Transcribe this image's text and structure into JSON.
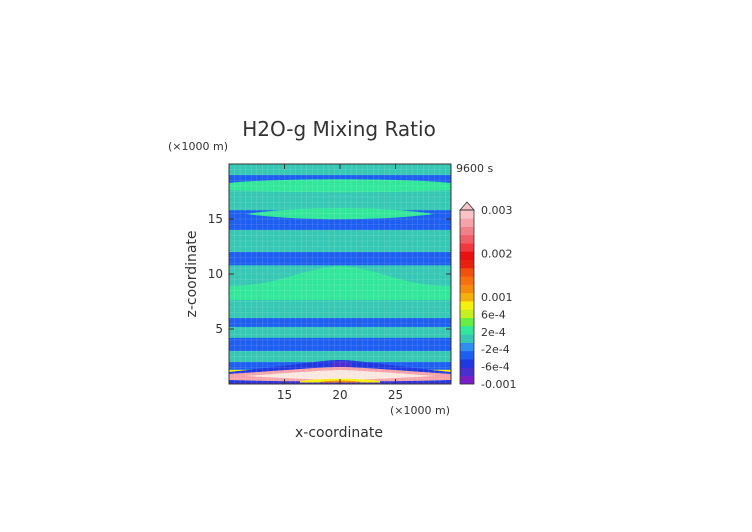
{
  "chart_data": {
    "type": "heatmap",
    "title": "H2O-g Mixing Ratio",
    "time_label": "9600 s",
    "xlabel": "x-coordinate",
    "ylabel": "z-coordinate",
    "x_unit": "(×1000 m)",
    "y_unit": "(×1000 m)",
    "xlim": [
      10,
      30
    ],
    "ylim": [
      0,
      20
    ],
    "x_ticks": [
      15,
      20,
      25
    ],
    "y_ticks": [
      5,
      10,
      15
    ],
    "colorbar": {
      "levels": [
        -0.001,
        -0.0008,
        -0.0006,
        -0.0004,
        -0.0002,
        0,
        0.0002,
        0.0004,
        0.0006,
        0.0008,
        0.001,
        0.0012,
        0.0014,
        0.0016,
        0.0018,
        0.002,
        0.0022,
        0.0024,
        0.0026,
        0.0028,
        0.003
      ],
      "colors": [
        "#7a1fc8",
        "#4a2fd0",
        "#2038e0",
        "#1e5ef0",
        "#2f8ff0",
        "#36c8b4",
        "#32e69a",
        "#66ee44",
        "#c8f020",
        "#f5f010",
        "#f5b010",
        "#f58a10",
        "#f57010",
        "#f05010",
        "#e82010",
        "#e81010",
        "#f03840",
        "#f05f66",
        "#f0808a",
        "#f5a2a8",
        "#f9c4c8"
      ],
      "labels": [
        "0.003",
        "0.002",
        "0.001",
        "6e-4",
        "2e-4",
        "-2e-4",
        "-6e-4",
        "-0.001"
      ],
      "label_values": [
        0.003,
        0.002,
        0.001,
        0.0006,
        0.0002,
        -0.0002,
        -0.0006,
        -0.001
      ]
    },
    "bands": [
      {
        "z": [
          0.0,
          0.3
        ],
        "value": -0.0009
      },
      {
        "z": [
          0.3,
          0.9
        ],
        "value": 0.0025
      },
      {
        "z": [
          0.9,
          1.3
        ],
        "value": 0.0008
      },
      {
        "z": [
          1.3,
          2.0
        ],
        "value": -0.0003
      },
      {
        "z": [
          2.0,
          3.0
        ],
        "value": 0.0001
      },
      {
        "z": [
          3.0,
          4.2
        ],
        "value": -0.0003
      },
      {
        "z": [
          4.2,
          5.2
        ],
        "value": 0.0001
      },
      {
        "z": [
          5.2,
          6.0
        ],
        "value": -0.0003
      },
      {
        "z": [
          6.0,
          10.8
        ],
        "value": 0.0001
      },
      {
        "z": [
          10.8,
          12.0
        ],
        "value": -0.0003
      },
      {
        "z": [
          12.0,
          14.0
        ],
        "value": 0.0001
      },
      {
        "z": [
          14.0,
          15.8
        ],
        "value": -0.0003
      },
      {
        "z": [
          15.8,
          18.0
        ],
        "value": 0.0001
      },
      {
        "z": [
          18.0,
          19.0
        ],
        "value": -0.0003
      },
      {
        "z": [
          19.0,
          20.0
        ],
        "value": 0.0001
      }
    ]
  }
}
